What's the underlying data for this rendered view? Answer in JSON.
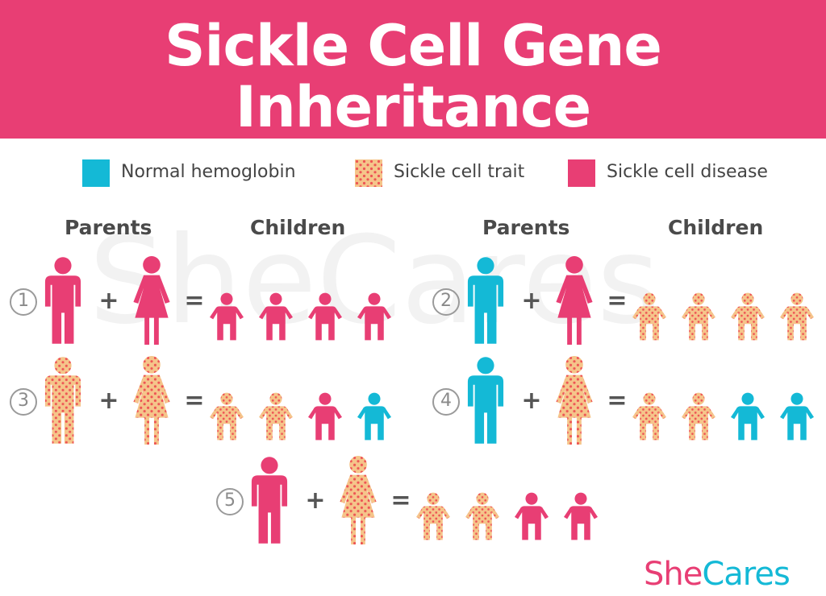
{
  "title": {
    "line1": "Sickle Cell Gene",
    "line2": "Inheritance"
  },
  "colors": {
    "banner": "#e83e74",
    "normal": "#14b9d6",
    "trait_fill": "#f5c58a",
    "trait_dots": "#ee5454",
    "disease": "#e83e74"
  },
  "legend": [
    {
      "key": "normal",
      "label": "Normal hemoglobin"
    },
    {
      "key": "trait",
      "label": "Sickle cell trait"
    },
    {
      "key": "disease",
      "label": "Sickle cell disease"
    }
  ],
  "headers": {
    "parents": "Parents",
    "children": "Children"
  },
  "watermark": "SheCares",
  "operators": {
    "plus": "+",
    "equals": "="
  },
  "scenarios": [
    {
      "number": "1",
      "father": "disease",
      "mother": "disease",
      "children": [
        "disease",
        "disease",
        "disease",
        "disease"
      ]
    },
    {
      "number": "2",
      "father": "normal",
      "mother": "disease",
      "children": [
        "trait",
        "trait",
        "trait",
        "trait"
      ]
    },
    {
      "number": "3",
      "father": "trait",
      "mother": "trait",
      "children": [
        "trait",
        "trait",
        "disease",
        "normal"
      ]
    },
    {
      "number": "4",
      "father": "normal",
      "mother": "trait",
      "children": [
        "trait",
        "trait",
        "normal",
        "normal"
      ]
    },
    {
      "number": "5",
      "father": "disease",
      "mother": "trait",
      "children": [
        "trait",
        "trait",
        "disease",
        "disease"
      ]
    }
  ],
  "brand": {
    "part1": "She",
    "part2": "Cares"
  }
}
